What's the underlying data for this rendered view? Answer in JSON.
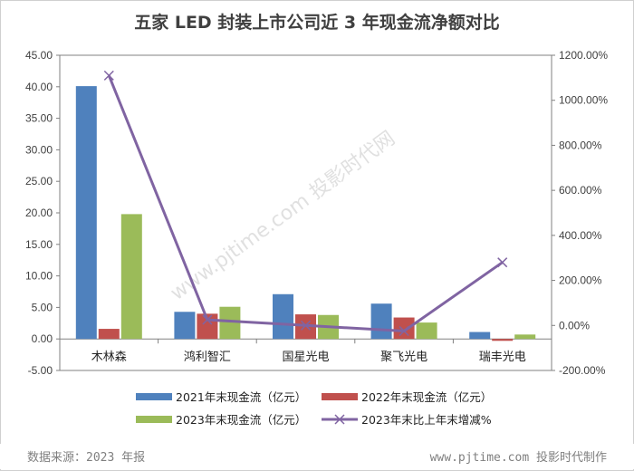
{
  "title": "五家 LED 封装上市公司近 3 年现金流净额对比",
  "watermark": "www.pjtime.com 投影时代网",
  "footer": {
    "source": "数据来源：2023 年报",
    "credit": "www.pjtime.com 投影时代制作"
  },
  "chart_data": {
    "type": "bar",
    "title": "五家 LED 封装上市公司近 3 年现金流净额对比",
    "categories": [
      "木林森",
      "鸿利智汇",
      "国星光电",
      "聚飞光电",
      "瑞丰光电"
    ],
    "series": [
      {
        "name": "2021年末现金流（亿元）",
        "type": "bar",
        "axis": "left",
        "color": "#4F81BD",
        "values": [
          40.1,
          4.3,
          7.1,
          5.6,
          1.1
        ]
      },
      {
        "name": "2022年末现金流（亿元）",
        "type": "bar",
        "axis": "left",
        "color": "#C0504D",
        "values": [
          1.6,
          4.0,
          3.9,
          3.4,
          -0.3
        ]
      },
      {
        "name": "2023年末现金流（亿元）",
        "type": "bar",
        "axis": "left",
        "color": "#9BBB59",
        "values": [
          19.8,
          5.1,
          3.8,
          2.6,
          0.7
        ]
      },
      {
        "name": "2023年末比上年末增减%",
        "type": "line",
        "axis": "right",
        "color": "#8064A2",
        "values": [
          1110,
          25,
          0,
          -25,
          280
        ]
      }
    ],
    "y_left": {
      "ylim": [
        -5,
        45
      ],
      "ticks": [
        "45.00",
        "40.00",
        "35.00",
        "30.00",
        "25.00",
        "20.00",
        "15.00",
        "10.00",
        "5.00",
        "0.00",
        "-5.00"
      ]
    },
    "y_right": {
      "ylim": [
        -200,
        1200
      ],
      "ticks": [
        "1200.00%",
        "1000.00%",
        "800.00%",
        "600.00%",
        "400.00%",
        "200.00%",
        "0.00%",
        "-200.00%"
      ]
    },
    "legend_position": "bottom",
    "grid": false
  }
}
